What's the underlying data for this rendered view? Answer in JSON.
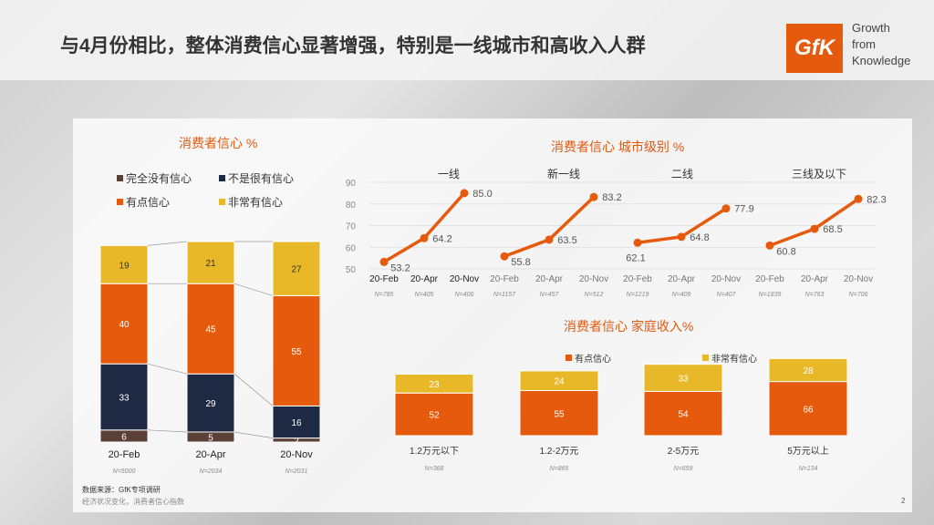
{
  "header": {
    "title": "与4月份相比，整体消费信心显著增强，特别是一线城市和高收入人群",
    "logo_text": "GfK",
    "tagline": [
      "Growth",
      "from",
      "Knowledge"
    ]
  },
  "footer": {
    "source": "数据来源：GfK专项调研",
    "note": "经济状况变化，消费者信心指数",
    "page": "2"
  },
  "colors": {
    "none": "#5a4036",
    "notvery": "#1e2a44",
    "some": "#e55a0c",
    "very": "#e8b828"
  },
  "chart_data": [
    {
      "type": "bar",
      "stacked": true,
      "title": "消费者信心 %",
      "legend": [
        "完全没有信心",
        "不是很有信心",
        "有点信心",
        "非常有信心"
      ],
      "categories": [
        "20-Feb",
        "20-Apr",
        "20-Nov"
      ],
      "n": [
        "N=5000",
        "N=2034",
        "N=2031"
      ],
      "series": [
        {
          "name": "完全没有信心",
          "values": [
            6,
            5,
            2
          ]
        },
        {
          "name": "不是很有信心",
          "values": [
            33,
            29,
            16
          ]
        },
        {
          "name": "有点信心",
          "values": [
            40,
            45,
            55
          ]
        },
        {
          "name": "非常有信心",
          "values": [
            19,
            21,
            27
          ]
        }
      ]
    },
    {
      "type": "line",
      "title": "消费者信心 城市级别 %",
      "ylim": [
        50,
        90
      ],
      "yticks": [
        "90",
        "80",
        "70",
        "60",
        "50"
      ],
      "groups": [
        {
          "name": "一线",
          "x": [
            "20-Feb",
            "20-Apr",
            "20-Nov"
          ],
          "values": [
            53.2,
            64.2,
            85.0
          ],
          "labels": [
            "53.2",
            "64.2",
            "85.0"
          ],
          "n": [
            "N=785",
            "N=405",
            "N=406"
          ]
        },
        {
          "name": "新一线",
          "x": [
            "20-Feb",
            "20-Apr",
            "20-Nov"
          ],
          "values": [
            55.8,
            63.5,
            83.2
          ],
          "labels": [
            "55.8",
            "63.5",
            "83.2"
          ],
          "n": [
            "N=1157",
            "N=457",
            "N=512"
          ]
        },
        {
          "name": "二线",
          "x": [
            "20-Feb",
            "20-Apr",
            "20-Nov"
          ],
          "values": [
            62.1,
            64.8,
            77.9
          ],
          "labels": [
            "62.1",
            "64.8",
            "77.9"
          ],
          "n": [
            "N=1219",
            "N=409",
            "N=407"
          ]
        },
        {
          "name": "三线及以下",
          "x": [
            "20-Feb",
            "20-Apr",
            "20-Nov"
          ],
          "values": [
            60.8,
            68.5,
            82.3
          ],
          "labels": [
            "60.8",
            "68.5",
            "82.3"
          ],
          "n": [
            "N=1839",
            "N=763",
            "N=706"
          ]
        }
      ]
    },
    {
      "type": "bar",
      "stacked": true,
      "title": "消费者信心 家庭收入%",
      "legend": [
        "有点信心",
        "非常有信心"
      ],
      "categories": [
        "1.2万元以下",
        "1.2-2万元",
        "2-5万元",
        "5万元以上"
      ],
      "n": [
        "N=368",
        "N=865",
        "N=659",
        "N=134"
      ],
      "series": [
        {
          "name": "有点信心",
          "values": [
            52,
            55,
            54,
            66
          ]
        },
        {
          "name": "非常有信心",
          "values": [
            23,
            24,
            33,
            28
          ]
        }
      ]
    }
  ]
}
